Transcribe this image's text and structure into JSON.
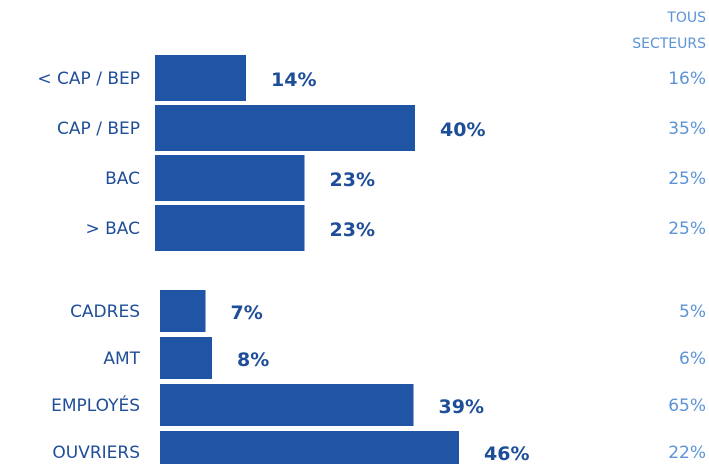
{
  "chart_data": {
    "type": "bar",
    "orientation": "horizontal",
    "reference_header": [
      "TOUS",
      "SECTEURS"
    ],
    "groups": [
      {
        "categories": [
          "< CAP / BEP",
          "CAP / BEP",
          "BAC",
          "> BAC"
        ],
        "values": [
          14,
          40,
          23,
          23
        ],
        "value_labels": [
          "14%",
          "40%",
          "23%",
          "23%"
        ],
        "reference_labels": [
          "16%",
          "35%",
          "25%",
          "25%"
        ]
      },
      {
        "categories": [
          "CADRES",
          "AMT",
          "EMPLOYÉS",
          "OUVRIERS"
        ],
        "values": [
          7,
          8,
          39,
          46
        ],
        "value_labels": [
          "7%",
          "8%",
          "39%",
          "46%"
        ],
        "reference_labels": [
          "5%",
          "6%",
          "65%",
          "22%"
        ]
      }
    ],
    "colors": {
      "bar": "#1f55a4",
      "label": "#1f4e99",
      "reference": "#5b93d6"
    },
    "grid": false,
    "legend": false
  }
}
